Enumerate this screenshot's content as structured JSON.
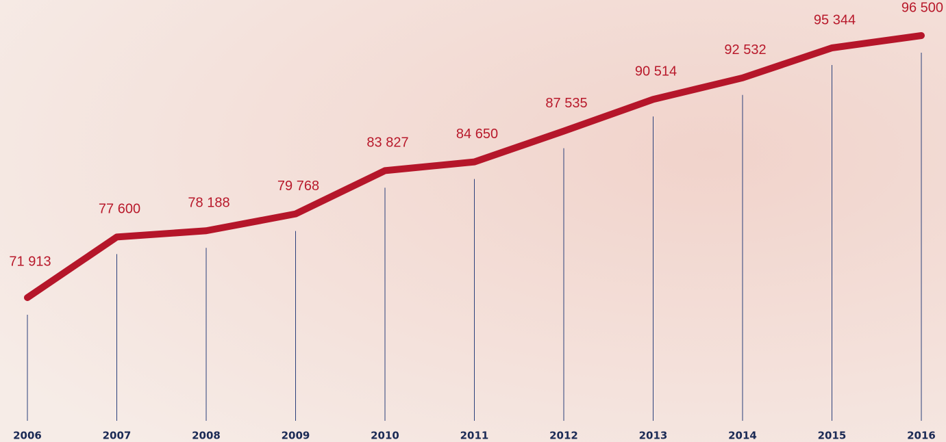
{
  "chart_data": {
    "type": "line",
    "categories": [
      "2006",
      "2007",
      "2008",
      "2009",
      "2010",
      "2011",
      "2012",
      "2013",
      "2014",
      "2015",
      "2016"
    ],
    "series": [
      {
        "color": "#b5162a",
        "values": [
          71913,
          77600,
          78188,
          79768,
          83827,
          84650,
          87535,
          90514,
          92532,
          95344,
          96500
        ],
        "value_labels": [
          "71 913",
          "77 600",
          "78 188",
          "79 768",
          "83 827",
          "84 650",
          "87 535",
          "90 514",
          "92 532",
          "95 344",
          "96 500"
        ]
      }
    ]
  }
}
